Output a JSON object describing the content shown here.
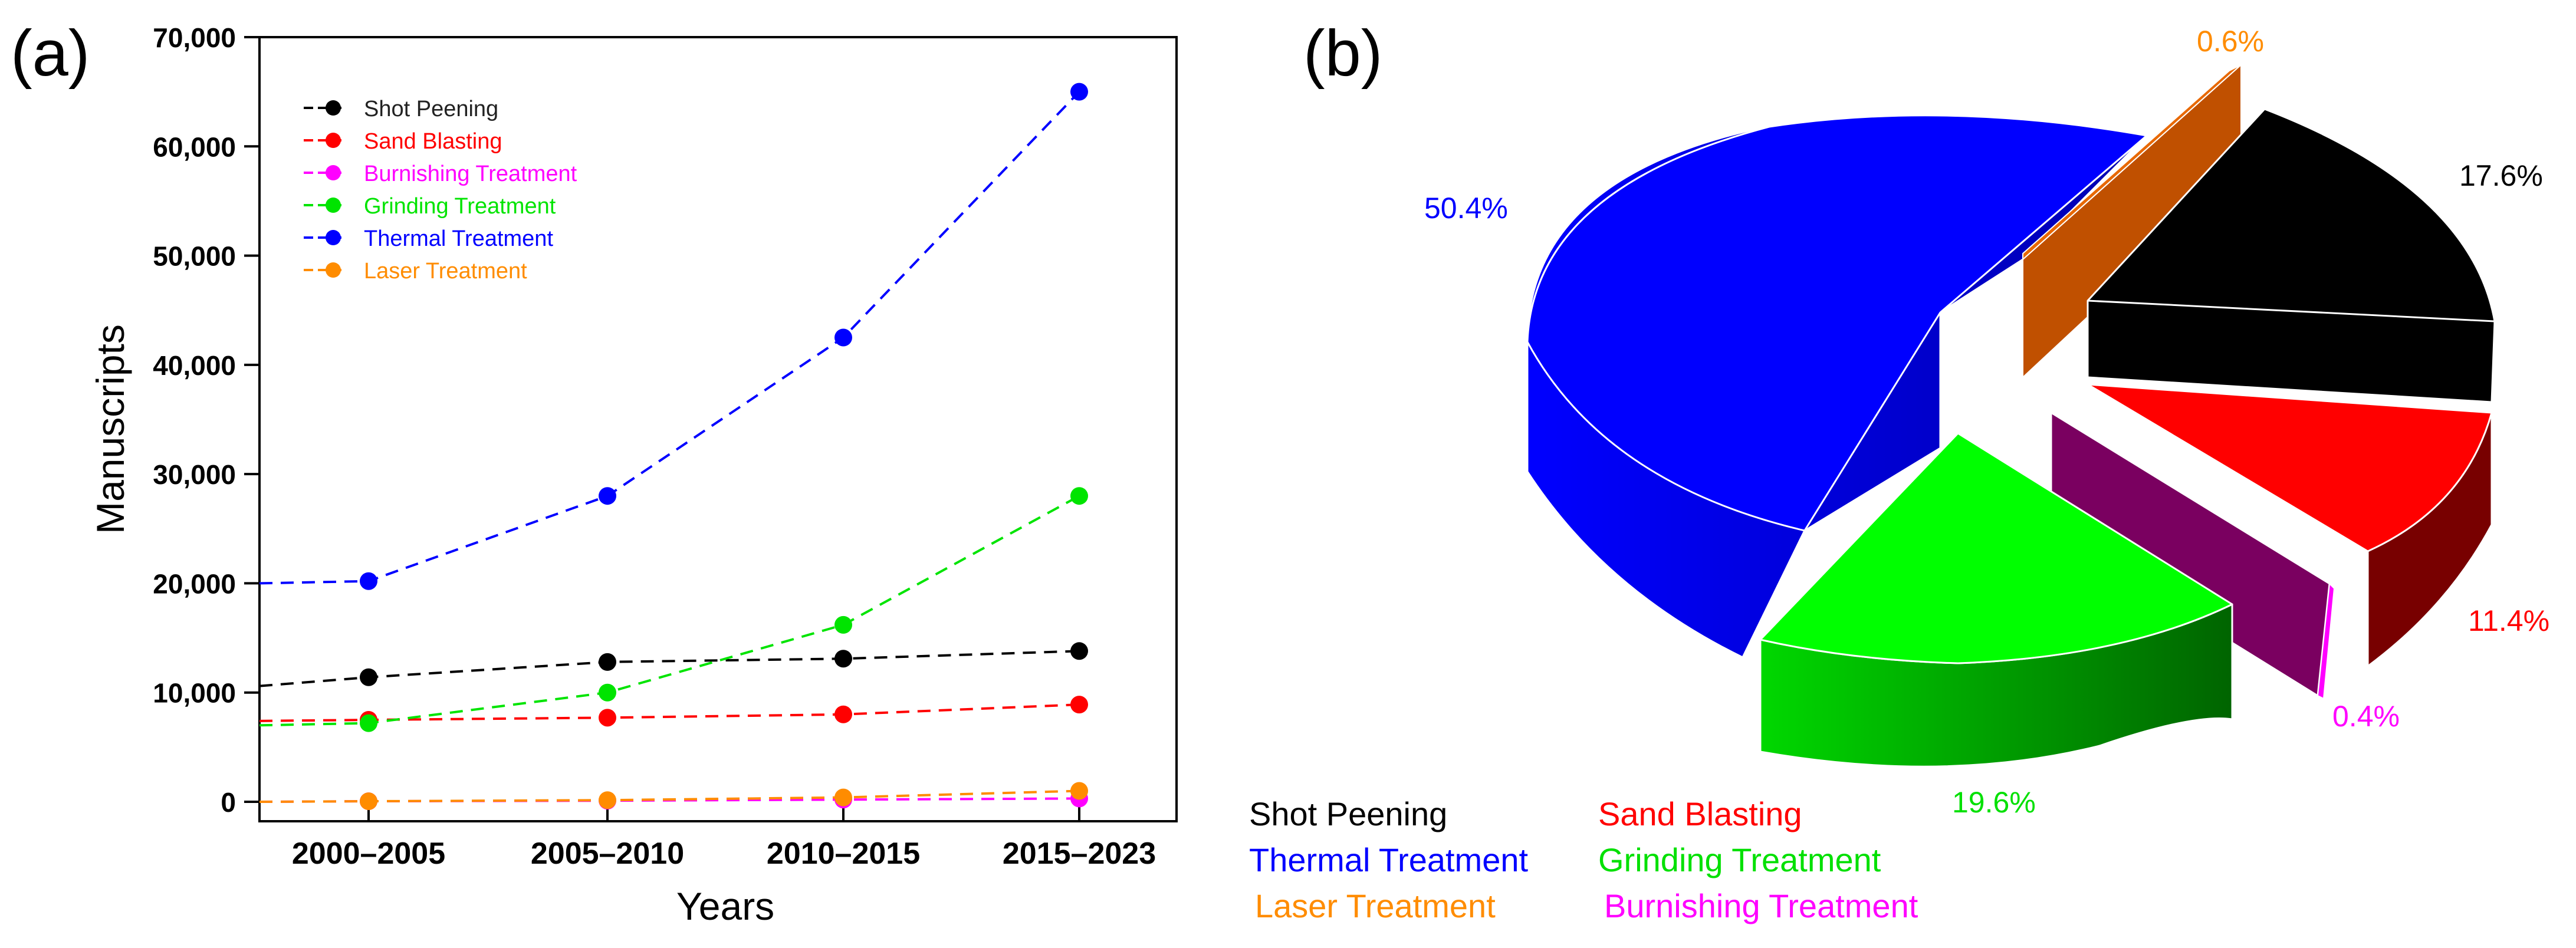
{
  "panel_a_label": "(a)",
  "panel_b_label": "(b)",
  "chart_data": [
    {
      "type": "line",
      "panel": "(a)",
      "title": "",
      "xlabel": "Years",
      "ylabel": "Manuscripts",
      "categories": [
        "2000–2005",
        "2005–2010",
        "2010–2015",
        "2015–2023"
      ],
      "ylim": [
        0,
        70000
      ],
      "yticks": [
        0,
        10000,
        20000,
        30000,
        40000,
        50000,
        60000,
        70000
      ],
      "ytick_labels": [
        "0",
        "10,000",
        "20,000",
        "30,000",
        "40,000",
        "50,000",
        "60,000",
        "70,000"
      ],
      "x_left_value": -0.4,
      "grid": false,
      "legend_position": "top-left",
      "series": [
        {
          "name": "Shot Peening",
          "color": "#000000",
          "start": 10600,
          "values": [
            11400,
            12800,
            13100,
            13800
          ]
        },
        {
          "name": "Sand Blasting",
          "color": "#ff0000",
          "start": 7400,
          "values": [
            7500,
            7700,
            8000,
            8900
          ]
        },
        {
          "name": "Burnishing Treatment",
          "color": "#ff00ff",
          "start": 0,
          "values": [
            50,
            100,
            200,
            300
          ]
        },
        {
          "name": "Grinding Treatment",
          "color": "#00e400",
          "start": 7000,
          "values": [
            7200,
            10000,
            16200,
            28000
          ]
        },
        {
          "name": "Thermal Treatment",
          "color": "#0000ff",
          "start": 20000,
          "values": [
            20200,
            28000,
            42500,
            65000
          ]
        },
        {
          "name": "Laser Treatment",
          "color": "#ff8c00",
          "start": 0,
          "values": [
            50,
            150,
            400,
            1000
          ]
        }
      ]
    },
    {
      "type": "pie",
      "panel": "(b)",
      "title": "",
      "slices": [
        {
          "name": "Thermal Treatment",
          "value": 50.4,
          "label": "50.4%",
          "color": "#0000ff",
          "side_color": "#0000c8",
          "label_color": "#0000ff"
        },
        {
          "name": "Laser Treatment",
          "value": 0.6,
          "label": "0.6%",
          "color": "#e86800",
          "side_color": "#c05000",
          "label_color": "#ff8c00"
        },
        {
          "name": "Shot Peening",
          "value": 17.6,
          "label": "17.6%",
          "color": "#000000",
          "side_color": "#000000",
          "label_color": "#000000"
        },
        {
          "name": "Sand Blasting",
          "value": 11.4,
          "label": "11.4%",
          "color": "#ff0000",
          "side_color": "#780000",
          "label_color": "#ff0000"
        },
        {
          "name": "Burnishing Treatment",
          "value": 0.4,
          "label": "0.4%",
          "color": "#ff00ff",
          "side_color": "#7a0060",
          "label_color": "#ff00ff"
        },
        {
          "name": "Grinding Treatment",
          "value": 19.6,
          "label": "19.6%",
          "color": "#00ff00",
          "side_color": "#00a000",
          "label_color": "#00e000"
        }
      ],
      "legend": [
        {
          "name": "Shot Peening",
          "color": "#000000"
        },
        {
          "name": "Sand Blasting",
          "color": "#ff0000"
        },
        {
          "name": "Thermal Treatment",
          "color": "#0000ff"
        },
        {
          "name": "Grinding Treatment",
          "color": "#00e000"
        },
        {
          "name": "Laser Treatment",
          "color": "#ff8c00"
        },
        {
          "name": "Burnishing Treatment",
          "color": "#ff00ff"
        }
      ]
    }
  ]
}
